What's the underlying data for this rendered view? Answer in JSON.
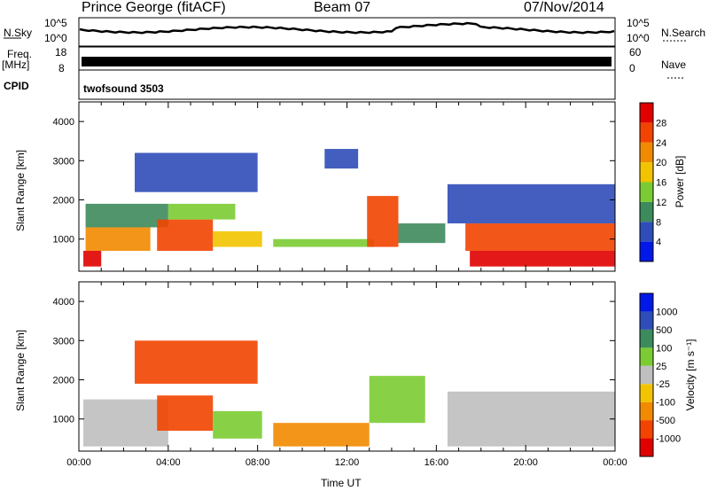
{
  "header": {
    "station": "Prince George (fitACF)",
    "beam": "Beam 07",
    "date": "07/Nov/2014"
  },
  "left_labels": {
    "nsky": "N.Sky",
    "nsky_top": "10^5",
    "nsky_bottom": "10^0",
    "freq_top_line": "Freq.",
    "freq_unit": "[MHz]",
    "freq_top": "18",
    "freq_bottom": "8",
    "cpid": "CPID"
  },
  "right_labels": {
    "nsearch": "N.Search",
    "nsearch_top": "10^5",
    "nsearch_bottom": "10^0",
    "nave": "Nave",
    "nave_top": "60",
    "nave_bottom": "0"
  },
  "cpid_value": "twofsound 3503",
  "colors": {
    "power_scale": [
      "#0018e8",
      "#2f4db8",
      "#3d8a5c",
      "#7bcc33",
      "#f2c400",
      "#f28a00",
      "#f24400",
      "#e00000"
    ],
    "velocity_scale": [
      "#e00000",
      "#f24400",
      "#f28a00",
      "#f2c400",
      "#bfbfbf",
      "#7bcc33",
      "#3d8a5c",
      "#2f4db8",
      "#0018e8"
    ]
  },
  "chart_data": [
    {
      "type": "heatmap",
      "name": "power",
      "ylabel": "Slant Range [km]",
      "yticks": [
        "1000",
        "2000",
        "3000",
        "4000"
      ],
      "ylim": [
        180,
        4500
      ],
      "xlim": [
        0,
        24
      ],
      "colorbar_label": "Power [dB]",
      "colorbar_ticks": [
        "4",
        "8",
        "12",
        "16",
        "20",
        "24",
        "28"
      ],
      "colorbar_range": [
        0,
        32
      ],
      "cells": [
        {
          "x": [
            0.2,
            1.0
          ],
          "y": [
            300,
            700
          ],
          "v": 29
        },
        {
          "x": [
            0.3,
            3.2
          ],
          "y": [
            700,
            1300
          ],
          "v": 22
        },
        {
          "x": [
            0.3,
            4.0
          ],
          "y": [
            1300,
            1900
          ],
          "v": 9
        },
        {
          "x": [
            3.5,
            6.0
          ],
          "y": [
            700,
            1500
          ],
          "v": 26
        },
        {
          "x": [
            4.0,
            7.0
          ],
          "y": [
            1500,
            1900
          ],
          "v": 14
        },
        {
          "x": [
            6.0,
            8.2
          ],
          "y": [
            800,
            1200
          ],
          "v": 17
        },
        {
          "x": [
            8.7,
            13.2
          ],
          "y": [
            800,
            1000
          ],
          "v": 14
        },
        {
          "x": [
            12.9,
            14.3
          ],
          "y": [
            800,
            2100
          ],
          "v": 27
        },
        {
          "x": [
            14.3,
            16.4
          ],
          "y": [
            900,
            1400
          ],
          "v": 10
        },
        {
          "x": [
            17.5,
            24.0
          ],
          "y": [
            300,
            700
          ],
          "v": 31
        },
        {
          "x": [
            17.3,
            24.0
          ],
          "y": [
            700,
            1400
          ],
          "v": 25
        },
        {
          "x": [
            16.5,
            24.0
          ],
          "y": [
            1400,
            2400
          ],
          "v": 6
        },
        {
          "x": [
            2.5,
            8.0
          ],
          "y": [
            2200,
            3200
          ],
          "v": 5
        },
        {
          "x": [
            11.0,
            12.5
          ],
          "y": [
            2800,
            3300
          ],
          "v": 4
        }
      ]
    },
    {
      "type": "heatmap",
      "name": "velocity",
      "xlabel": "Time UT",
      "ylabel": "Slant Range [km]",
      "xticks": [
        "00:00",
        "04:00",
        "08:00",
        "12:00",
        "16:00",
        "20:00",
        "00:00"
      ],
      "yticks": [
        "1000",
        "2000",
        "3000",
        "4000"
      ],
      "ylim": [
        180,
        4500
      ],
      "xlim": [
        0,
        24
      ],
      "colorbar_label": "Velocity [m s⁻¹]",
      "colorbar_ticks": [
        "1000",
        "500",
        "100",
        "25",
        "-25",
        "-100",
        "-500",
        "-1000"
      ],
      "cells": [
        {
          "x": [
            0.2,
            4.0
          ],
          "y": [
            300,
            1500
          ],
          "v": -10
        },
        {
          "x": [
            3.5,
            6.0
          ],
          "y": [
            700,
            1600
          ],
          "v": -200
        },
        {
          "x": [
            6.0,
            8.2
          ],
          "y": [
            500,
            1200
          ],
          "v": 80
        },
        {
          "x": [
            8.7,
            13.0
          ],
          "y": [
            300,
            900
          ],
          "v": -60
        },
        {
          "x": [
            13.0,
            15.5
          ],
          "y": [
            900,
            2100
          ],
          "v": 60
        },
        {
          "x": [
            16.5,
            24.0
          ],
          "y": [
            300,
            1700
          ],
          "v": 5
        },
        {
          "x": [
            2.5,
            8.0
          ],
          "y": [
            1900,
            3000
          ],
          "v": -150
        }
      ]
    }
  ]
}
